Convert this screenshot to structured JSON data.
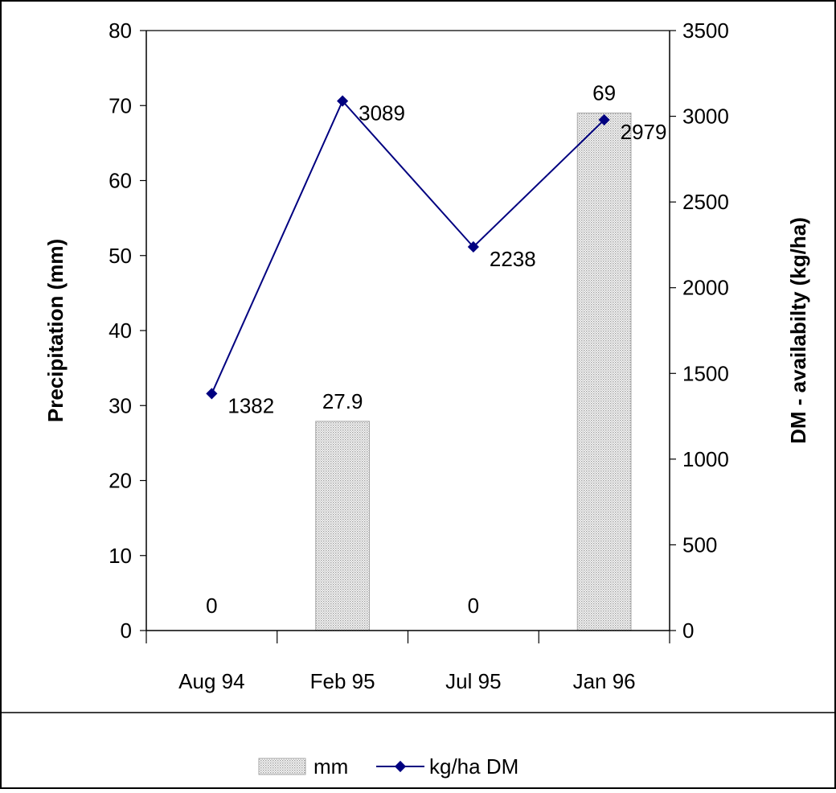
{
  "chart_data": {
    "type": "bar",
    "categories": [
      "Aug 94",
      "Feb 95",
      "Jul 95",
      "Jan 96"
    ],
    "title": "",
    "xlabel": "",
    "ylabel": "Precipitation (mm)",
    "y2label": "DM - availabilty (kg/ha)",
    "ylim": [
      0,
      80
    ],
    "y2lim": [
      0,
      3500
    ],
    "yticks": [
      0,
      10,
      20,
      30,
      40,
      50,
      60,
      70,
      80
    ],
    "y2ticks": [
      0,
      500,
      1000,
      1500,
      2000,
      2500,
      3000,
      3500
    ],
    "grid": false,
    "legend_position": "bottom",
    "series": [
      {
        "name": "mm",
        "type": "bar",
        "axis": "left",
        "values": [
          0,
          27.9,
          0,
          69
        ],
        "labels": [
          "0",
          "27.9",
          "0",
          "69"
        ]
      },
      {
        "name": "kg/ha DM",
        "type": "line",
        "axis": "right",
        "values": [
          1382,
          3089,
          2238,
          2979
        ],
        "labels": [
          "1382",
          "3089",
          "2238",
          "2979"
        ]
      }
    ],
    "colors": {
      "bar_fill": "#d9d9d9",
      "bar_stroke": "#a6a6a6",
      "line": "#000080",
      "axis": "#000000",
      "frame": "#000000"
    }
  }
}
